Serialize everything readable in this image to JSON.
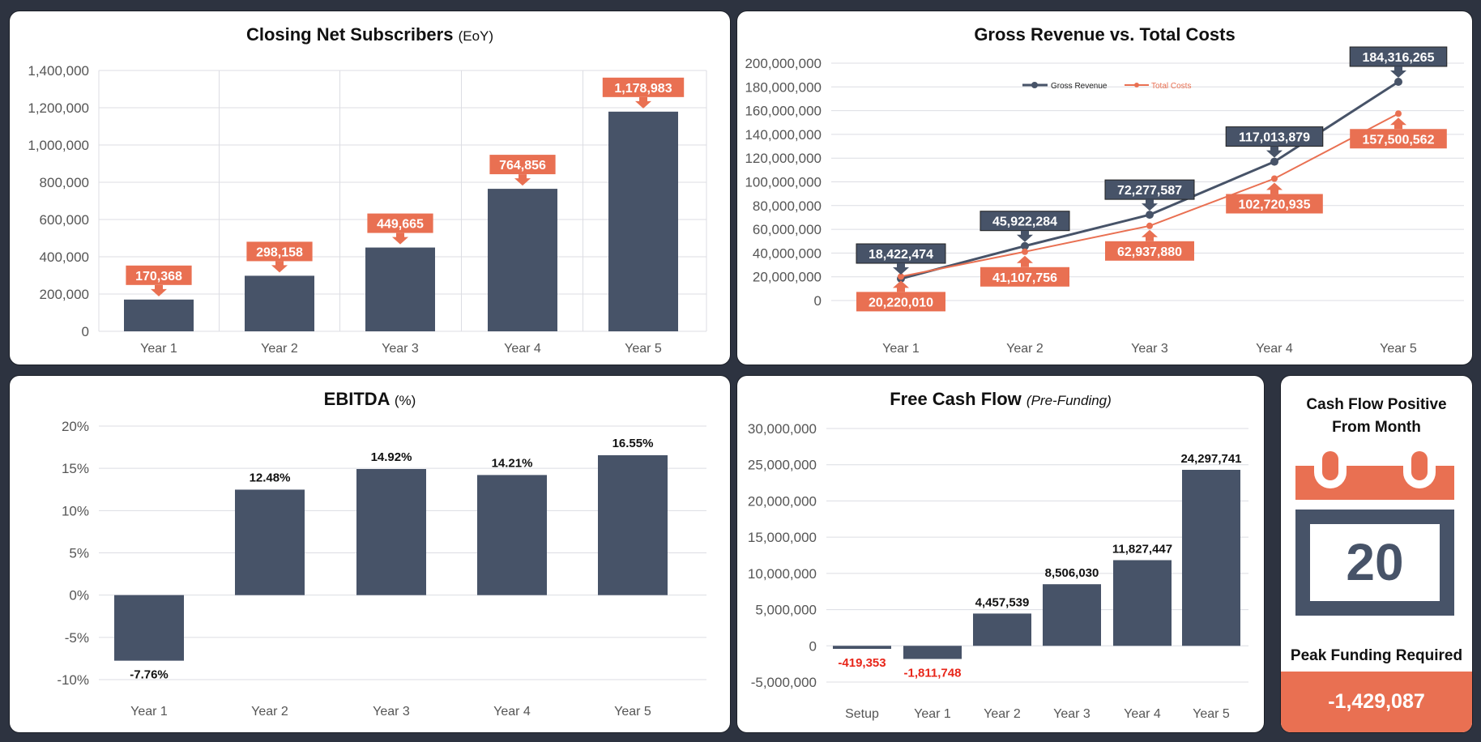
{
  "colors": {
    "navy": "#475368",
    "orange": "#E97052",
    "negative": "#E8261A",
    "background": "#2D3340"
  },
  "chart_data": [
    {
      "type": "bar",
      "title": "Closing Net Subscribers",
      "title_suffix": "(EoY)",
      "categories": [
        "Year 1",
        "Year 2",
        "Year 3",
        "Year 4",
        "Year 5"
      ],
      "values": [
        170368,
        298158,
        449665,
        764856,
        1178983
      ],
      "data_labels": [
        "170,368",
        "298,158",
        "449,665",
        "764,856",
        "1,178,983"
      ],
      "ylim": [
        0,
        1400000
      ],
      "yticks": [
        "0",
        "200,000",
        "400,000",
        "600,000",
        "800,000",
        "1,000,000",
        "1,200,000",
        "1,400,000"
      ],
      "grid": true
    },
    {
      "type": "line",
      "title": "Gross Revenue vs. Total Costs",
      "categories": [
        "Year 1",
        "Year 2",
        "Year 3",
        "Year 4",
        "Year 5"
      ],
      "series": [
        {
          "name": "Gross Revenue",
          "values": [
            18422474,
            45922284,
            72277587,
            117013879,
            184316265
          ],
          "data_labels": [
            "18,422,474",
            "45,922,284",
            "72,277,587",
            "117,013,879",
            "184,316,265"
          ]
        },
        {
          "name": "Total Costs",
          "values": [
            20220010,
            41107756,
            62937880,
            102720935,
            157500562
          ],
          "data_labels": [
            "20,220,010",
            "41,107,756",
            "62,937,880",
            "102,720,935",
            "157,500,562"
          ]
        }
      ],
      "ylim": [
        0,
        200000000
      ],
      "yticks": [
        "0",
        "20,000,000",
        "40,000,000",
        "60,000,000",
        "80,000,000",
        "100,000,000",
        "120,000,000",
        "140,000,000",
        "160,000,000",
        "180,000,000",
        "200,000,000"
      ],
      "legend": "top",
      "grid": true
    },
    {
      "type": "bar",
      "title": "EBITDA",
      "title_suffix": "(%)",
      "categories": [
        "Year 1",
        "Year 2",
        "Year 3",
        "Year 4",
        "Year 5"
      ],
      "values": [
        -7.76,
        12.48,
        14.92,
        14.21,
        16.55
      ],
      "data_labels": [
        "-7.76%",
        "12.48%",
        "14.92%",
        "14.21%",
        "16.55%"
      ],
      "ylim": [
        -10,
        20
      ],
      "yticks": [
        "-10%",
        "-5%",
        "0%",
        "5%",
        "10%",
        "15%",
        "20%"
      ],
      "grid": true
    },
    {
      "type": "bar",
      "title": "Free Cash Flow",
      "title_suffix": "(Pre-Funding)",
      "categories": [
        "Setup",
        "Year 1",
        "Year 2",
        "Year 3",
        "Year 4",
        "Year 5"
      ],
      "values": [
        -419353,
        -1811748,
        4457539,
        8506030,
        11827447,
        24297741
      ],
      "data_labels": [
        "-419,353",
        "-1,811,748",
        "4,457,539",
        "8,506,030",
        "11,827,447",
        "24,297,741"
      ],
      "ylim": [
        -5000000,
        30000000
      ],
      "yticks": [
        "-5,000,000",
        "0",
        "5,000,000",
        "10,000,000",
        "15,000,000",
        "20,000,000",
        "25,000,000",
        "30,000,000"
      ],
      "grid": true
    }
  ],
  "kpi": {
    "title_line1": "Cash Flow Positive",
    "title_line2": "From Month",
    "month": "20",
    "icon": "calendar-icon",
    "peak_label": "Peak Funding Required",
    "peak_value": "-1,429,087"
  }
}
